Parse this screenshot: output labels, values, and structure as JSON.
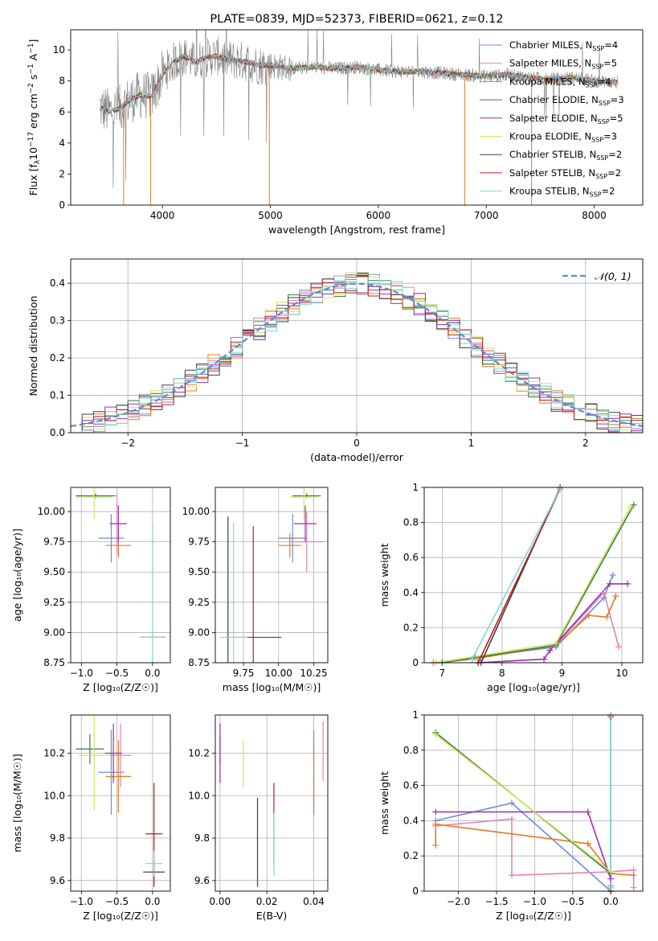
{
  "colors": {
    "chabrier_miles": "#6a8fd8",
    "salpeter_miles": "#e681b8",
    "kroupa_miles": "#e67a1e",
    "chabrier_elodie": "#3a7a4a",
    "salpeter_elodie": "#9a2fb0",
    "kroupa_elodie": "#cde85a",
    "chabrier_stelib": "#404040",
    "salpeter_stelib": "#c0191b",
    "kroupa_stelib": "#7fd8d8",
    "data_spectrum": "#808080",
    "normal_curve": "#5b8bd8",
    "grid": "#b0b0b0"
  },
  "chart_data": [
    {
      "id": "spectrum",
      "type": "line",
      "title": "PLATE=0839, MJD=52373, FIBERID=0621, z=0.12",
      "xlabel": "wavelength [Angstrom, rest frame]",
      "ylabel_parts": [
        "Flux [f",
        "λ",
        "10",
        "−17",
        " erg cm",
        "−2",
        " s",
        "−1",
        " A",
        "−1",
        "]"
      ],
      "xlim": [
        3150,
        8450
      ],
      "ylim": [
        0,
        11.3
      ],
      "xticks": [
        4000,
        5000,
        6000,
        7000,
        8000
      ],
      "yticks": [
        0,
        2,
        4,
        6,
        8,
        10
      ],
      "grid": false,
      "legend_position": "top-right",
      "legend": [
        {
          "name": "Chabrier MILES, N",
          "sub": "SSP",
          "rest": "=4",
          "color_key": "chabrier_miles"
        },
        {
          "name": "Salpeter MILES, N",
          "sub": "SSP",
          "rest": "=5",
          "color_key": "salpeter_miles"
        },
        {
          "name": "Kroupa MILES, N",
          "sub": "SSP",
          "rest": "=4",
          "color_key": "kroupa_miles"
        },
        {
          "name": "Chabrier ELODIE, N",
          "sub": "SSP",
          "rest": "=3",
          "color_key": "chabrier_elodie"
        },
        {
          "name": "Salpeter ELODIE, N",
          "sub": "SSP",
          "rest": "=5",
          "color_key": "salpeter_elodie"
        },
        {
          "name": "Kroupa ELODIE, N",
          "sub": "SSP",
          "rest": "=3",
          "color_key": "kroupa_elodie"
        },
        {
          "name": "Chabrier STELIB, N",
          "sub": "SSP",
          "rest": "=2",
          "color_key": "chabrier_stelib"
        },
        {
          "name": "Salpeter STELIB, N",
          "sub": "SSP",
          "rest": "=2",
          "color_key": "salpeter_stelib"
        },
        {
          "name": "Kroupa STELIB, N",
          "sub": "SSP",
          "rest": "=2",
          "color_key": "kroupa_stelib"
        }
      ],
      "continuum": [
        [
          3420,
          6.3
        ],
        [
          3500,
          6.0
        ],
        [
          3600,
          6.2
        ],
        [
          3700,
          6.8
        ],
        [
          3800,
          7.1
        ],
        [
          3900,
          7.0
        ],
        [
          4000,
          8.4
        ],
        [
          4100,
          9.2
        ],
        [
          4200,
          9.6
        ],
        [
          4300,
          9.2
        ],
        [
          4400,
          9.5
        ],
        [
          4500,
          9.6
        ],
        [
          4600,
          9.4
        ],
        [
          4700,
          9.3
        ],
        [
          4800,
          9.2
        ],
        [
          4900,
          9.0
        ],
        [
          5000,
          9.0
        ],
        [
          5200,
          8.8
        ],
        [
          5400,
          8.9
        ],
        [
          5600,
          8.8
        ],
        [
          5800,
          8.9
        ],
        [
          6000,
          8.7
        ],
        [
          6200,
          8.6
        ],
        [
          6400,
          8.6
        ],
        [
          6600,
          8.5
        ],
        [
          6800,
          8.4
        ],
        [
          7000,
          8.3
        ],
        [
          7200,
          8.4
        ],
        [
          7400,
          8.2
        ],
        [
          7600,
          8.1
        ],
        [
          7800,
          8.2
        ],
        [
          8000,
          8.0
        ],
        [
          8200,
          7.9
        ]
      ],
      "dips": [
        [
          3640,
          0
        ],
        [
          3890,
          0
        ],
        [
          4990,
          0
        ],
        [
          6800,
          0
        ],
        [
          7420,
          0
        ]
      ]
    },
    {
      "id": "residuals",
      "type": "histogram",
      "xlabel": "(data-model)/error",
      "ylabel": "Normed distribution",
      "xlim": [
        -2.5,
        2.5
      ],
      "ylim": [
        0,
        0.465
      ],
      "xticks": [
        -2,
        -1,
        0,
        1,
        2
      ],
      "yticks": [
        0.0,
        0.1,
        0.2,
        0.3,
        0.4
      ],
      "grid": true,
      "legend_position": "top-right",
      "legend": [
        {
          "name": "𝒩(0, 1)",
          "color_key": "normal_curve"
        }
      ],
      "bin_width": 0.1
    },
    {
      "id": "age_vs_Z",
      "type": "errorbar",
      "xlabel": "Z [log₁₀(Z/Z☉)]",
      "ylabel": "age  [log₁₀(age/yr)]",
      "xlim": [
        -1.15,
        0.25
      ],
      "ylim": [
        8.75,
        10.2
      ],
      "xticks": [
        -1.0,
        -0.5,
        0.0
      ],
      "xtick_labels": [
        "−1.0",
        "−0.5",
        "0.0"
      ],
      "yticks": [
        8.75,
        9.0,
        9.25,
        9.5,
        9.75,
        10.0
      ],
      "ytick_labels": [
        "8.75",
        "9.00",
        "9.25",
        "9.50",
        "9.75",
        "10.00"
      ],
      "grid": true,
      "points": [
        {
          "color_key": "chabrier_miles",
          "x": -0.58,
          "xerr": 0.18,
          "y": 9.78,
          "yerr": 0.2
        },
        {
          "color_key": "salpeter_miles",
          "x": -0.5,
          "xerr": 0.1,
          "y": 9.9,
          "yerr": 0.25
        },
        {
          "color_key": "kroupa_miles",
          "x": -0.48,
          "xerr": 0.18,
          "y": 9.72,
          "yerr": 0.1
        },
        {
          "color_key": "chabrier_elodie",
          "x": -0.8,
          "xerr": 0.28,
          "y": 10.13,
          "yerr": 0.02
        },
        {
          "color_key": "salpeter_elodie",
          "x": -0.48,
          "xerr": 0.12,
          "y": 9.9,
          "yerr": 0.15
        },
        {
          "color_key": "kroupa_elodie",
          "x": -0.82,
          "xerr": 0.25,
          "y": 10.12,
          "yerr": 0.18
        },
        {
          "color_key": "chabrier_stelib",
          "x": 0.0,
          "xerr": 0.18,
          "y": 8.96,
          "yerr": 0.0
        },
        {
          "color_key": "salpeter_stelib",
          "x": 0.0,
          "xerr": 0.18,
          "y": 8.96,
          "yerr": 0.0
        },
        {
          "color_key": "kroupa_stelib",
          "x": 0.0,
          "xerr": 0.18,
          "y": 8.96,
          "yerr": 0.95
        }
      ]
    },
    {
      "id": "age_vs_mass",
      "type": "errorbar",
      "xlabel": "mass [log₁₀(M/M☉)]",
      "ylabel": "",
      "xlim": [
        9.55,
        10.35
      ],
      "ylim": [
        8.75,
        10.2
      ],
      "xticks": [
        9.75,
        10.0,
        10.25
      ],
      "xtick_labels": [
        "9.75",
        "10.00",
        "10.25"
      ],
      "yticks": [
        8.75,
        9.0,
        9.25,
        9.5,
        9.75,
        10.0
      ],
      "ytick_labels": [
        "8.75",
        "9.00",
        "9.25",
        "9.50",
        "9.75",
        "10.00"
      ],
      "grid": true,
      "points": [
        {
          "color_key": "chabrier_miles",
          "x": 10.1,
          "xerr": 0.1,
          "y": 9.78,
          "yerr": 0.2
        },
        {
          "color_key": "salpeter_miles",
          "x": 10.2,
          "xerr": 0.12,
          "y": 9.75,
          "yerr": 0.25
        },
        {
          "color_key": "kroupa_miles",
          "x": 10.08,
          "xerr": 0.08,
          "y": 9.72,
          "yerr": 0.1
        },
        {
          "color_key": "chabrier_elodie",
          "x": 10.2,
          "xerr": 0.1,
          "y": 10.13,
          "yerr": 0.02
        },
        {
          "color_key": "salpeter_elodie",
          "x": 10.19,
          "xerr": 0.08,
          "y": 9.9,
          "yerr": 0.15
        },
        {
          "color_key": "kroupa_elodie",
          "x": 10.18,
          "xerr": 0.1,
          "y": 10.12,
          "yerr": 0.18
        },
        {
          "color_key": "chabrier_stelib",
          "x": 9.64,
          "xerr": 0.0,
          "y": 8.96,
          "yerr": 1.0
        },
        {
          "color_key": "salpeter_stelib",
          "x": 9.82,
          "xerr": 0.2,
          "y": 8.96,
          "yerr": 0.92
        },
        {
          "color_key": "kroupa_stelib",
          "x": 9.68,
          "xerr": 0.1,
          "y": 8.96,
          "yerr": 0.95
        }
      ]
    },
    {
      "id": "weight_vs_age",
      "type": "line",
      "xlabel": "age  [log₁₀(age/yr)]",
      "ylabel": "mass weight",
      "xlim": [
        6.7,
        10.35
      ],
      "ylim": [
        0,
        1.0
      ],
      "xticks": [
        7,
        8,
        9,
        10
      ],
      "yticks": [
        0.0,
        0.2,
        0.4,
        0.6,
        0.8,
        1.0
      ],
      "grid": true,
      "series": [
        {
          "color_key": "chabrier_miles",
          "x": [
            6.9,
            7.55,
            8.9,
            9.7,
            9.85
          ],
          "y": [
            0.0,
            0.03,
            0.09,
            0.37,
            0.5
          ]
        },
        {
          "color_key": "salpeter_miles",
          "x": [
            6.9,
            7.5,
            8.9,
            9.7,
            9.95
          ],
          "y": [
            0.0,
            0.02,
            0.1,
            0.4,
            0.09
          ]
        },
        {
          "color_key": "kroupa_miles",
          "x": [
            6.85,
            7.5,
            8.9,
            9.45,
            9.75,
            9.9
          ],
          "y": [
            0.0,
            0.02,
            0.1,
            0.27,
            0.26,
            0.38
          ]
        },
        {
          "color_key": "chabrier_elodie",
          "x": [
            7.0,
            8.9,
            10.2
          ],
          "y": [
            0.0,
            0.1,
            0.9
          ]
        },
        {
          "color_key": "salpeter_elodie",
          "x": [
            7.6,
            8.7,
            8.8,
            9.8,
            10.1
          ],
          "y": [
            0.0,
            0.02,
            0.07,
            0.45,
            0.45
          ]
        },
        {
          "color_key": "kroupa_elodie",
          "x": [
            6.9,
            8.9,
            10.15
          ],
          "y": [
            0.0,
            0.11,
            0.89
          ]
        },
        {
          "color_key": "chabrier_stelib",
          "x": [
            7.65,
            8.97
          ],
          "y": [
            0.0,
            1.0
          ]
        },
        {
          "color_key": "salpeter_stelib",
          "x": [
            7.6,
            8.97
          ],
          "y": [
            0.0,
            0.99
          ]
        },
        {
          "color_key": "kroupa_stelib",
          "x": [
            7.5,
            8.97
          ],
          "y": [
            0.02,
            0.99
          ]
        }
      ]
    },
    {
      "id": "mass_vs_Z",
      "type": "errorbar",
      "xlabel": "Z [log₁₀(Z/Z☉)]",
      "ylabel": "mass [log₁₀(M/M☉)]",
      "xlim": [
        -1.15,
        0.25
      ],
      "ylim": [
        9.55,
        10.38
      ],
      "xticks": [
        -1.0,
        -0.5,
        0.0
      ],
      "xtick_labels": [
        "−1.0",
        "−0.5",
        "0.0"
      ],
      "yticks": [
        9.6,
        9.8,
        10.0,
        10.2
      ],
      "ytick_labels": [
        "9.6",
        "9.8",
        "10.0",
        "10.2"
      ],
      "grid": true,
      "points": [
        {
          "color_key": "chabrier_miles",
          "x": -0.58,
          "xerr": 0.18,
          "y": 10.11,
          "yerr": 0.2
        },
        {
          "color_key": "salpeter_miles",
          "x": -0.45,
          "xerr": 0.15,
          "y": 10.19,
          "yerr": 0.15
        },
        {
          "color_key": "kroupa_miles",
          "x": -0.48,
          "xerr": 0.18,
          "y": 10.09,
          "yerr": 0.17
        },
        {
          "color_key": "chabrier_elodie",
          "x": -0.88,
          "xerr": 0.2,
          "y": 10.22,
          "yerr": 0.07
        },
        {
          "color_key": "salpeter_elodie",
          "x": -0.55,
          "xerr": 0.12,
          "y": 10.2,
          "yerr": 0.14
        },
        {
          "color_key": "kroupa_elodie",
          "x": -0.82,
          "xerr": 0.22,
          "y": 10.19,
          "yerr": 0.26
        },
        {
          "color_key": "chabrier_stelib",
          "x": 0.02,
          "xerr": 0.15,
          "y": 9.64,
          "yerr": 0.07
        },
        {
          "color_key": "salpeter_stelib",
          "x": 0.02,
          "xerr": 0.12,
          "y": 9.82,
          "yerr": 0.24
        },
        {
          "color_key": "kroupa_stelib",
          "x": 0.02,
          "xerr": 0.12,
          "y": 9.68,
          "yerr": 0.06
        }
      ]
    },
    {
      "id": "mass_vs_ebv",
      "type": "errorbar",
      "xlabel": "E(B-V)",
      "ylabel": "",
      "xlim": [
        -0.002,
        0.046
      ],
      "ylim": [
        9.55,
        10.38
      ],
      "xticks": [
        0.0,
        0.02,
        0.04
      ],
      "xtick_labels": [
        "0.00",
        "0.02",
        "0.04"
      ],
      "yticks": [
        9.6,
        9.8,
        10.0,
        10.2
      ],
      "ytick_labels": [
        "9.6",
        "9.8",
        "10.0",
        "10.2"
      ],
      "grid": true,
      "points": [
        {
          "color_key": "chabrier_miles",
          "x": 0.04,
          "xerr": 0.0,
          "y": 10.11,
          "yerr": 0.2
        },
        {
          "color_key": "salpeter_miles",
          "x": 0.044,
          "xerr": 0.0,
          "y": 10.21,
          "yerr": 0.14
        },
        {
          "color_key": "kroupa_miles",
          "x": 0.04,
          "xerr": 0.0,
          "y": 10.09,
          "yerr": 0.17
        },
        {
          "color_key": "chabrier_elodie",
          "x": 0.0,
          "xerr": 0.0,
          "y": 10.22,
          "yerr": 0.07
        },
        {
          "color_key": "salpeter_elodie",
          "x": 0.0,
          "xerr": 0.0,
          "y": 10.2,
          "yerr": 0.14
        },
        {
          "color_key": "kroupa_elodie",
          "x": 0.01,
          "xerr": 0.0,
          "y": 10.15,
          "yerr": 0.11
        },
        {
          "color_key": "chabrier_stelib",
          "x": 0.016,
          "xerr": 0.0,
          "y": 9.78,
          "yerr": 0.21
        },
        {
          "color_key": "salpeter_stelib",
          "x": 0.023,
          "xerr": 0.0,
          "y": 9.87,
          "yerr": 0.19
        },
        {
          "color_key": "kroupa_stelib",
          "x": 0.023,
          "xerr": 0.0,
          "y": 9.77,
          "yerr": 0.15
        }
      ]
    },
    {
      "id": "weight_vs_Z",
      "type": "line",
      "xlabel": "Z [log₁₀(Z/Z☉)]",
      "ylabel": "mass weight",
      "xlim": [
        -2.45,
        0.42
      ],
      "ylim": [
        0,
        1.0
      ],
      "xticks": [
        -2.0,
        -1.5,
        -1.0,
        -0.5,
        0.0
      ],
      "xtick_labels": [
        "−2.0",
        "−1.5",
        "−1.0",
        "−0.5",
        "0.0"
      ],
      "yticks": [
        0.0,
        0.2,
        0.4,
        0.6,
        0.8,
        1.0
      ],
      "grid": true,
      "series": [
        {
          "color_key": "chabrier_miles",
          "x": [
            -2.3,
            -1.3,
            0.0,
            0.0
          ],
          "y": [
            0.4,
            0.5,
            0.0,
            0.03
          ]
        },
        {
          "color_key": "salpeter_miles",
          "x": [
            -2.3,
            -1.3,
            -1.3,
            0.0,
            0.3,
            0.3
          ],
          "y": [
            0.37,
            0.41,
            0.09,
            0.11,
            0.12,
            0.02
          ]
        },
        {
          "color_key": "kroupa_miles",
          "x": [
            -2.3,
            -2.3,
            -0.3,
            0.0,
            0.3
          ],
          "y": [
            0.26,
            0.38,
            0.27,
            0.1,
            0.09
          ]
        },
        {
          "color_key": "chabrier_elodie",
          "x": [
            -2.3,
            0.0
          ],
          "y": [
            0.9,
            0.1
          ]
        },
        {
          "color_key": "salpeter_elodie",
          "x": [
            -2.3,
            -0.3,
            0.0,
            0.0
          ],
          "y": [
            0.45,
            0.45,
            0.07,
            0.02
          ]
        },
        {
          "color_key": "kroupa_elodie",
          "x": [
            -2.3,
            0.0
          ],
          "y": [
            0.89,
            0.11
          ]
        },
        {
          "color_key": "chabrier_stelib",
          "x": [
            0.0,
            0.0
          ],
          "y": [
            0.0,
            1.0
          ]
        },
        {
          "color_key": "salpeter_stelib",
          "x": [
            0.0,
            0.0
          ],
          "y": [
            0.0,
            0.99
          ]
        },
        {
          "color_key": "kroupa_stelib",
          "x": [
            0.0,
            0.0
          ],
          "y": [
            0.02,
            1.0
          ]
        }
      ]
    }
  ]
}
